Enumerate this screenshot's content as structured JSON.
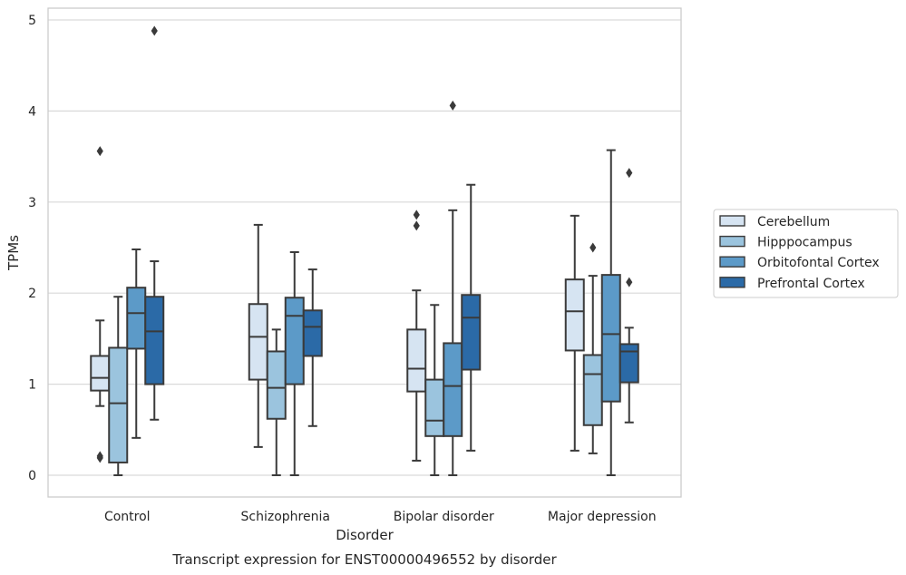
{
  "chart_data": {
    "type": "box",
    "title": "",
    "caption": "Transcript expression for ENST00000496552 by disorder",
    "xlabel": "Disorder",
    "ylabel": "TPMs",
    "ylim": [
      -0.22,
      5.12
    ],
    "yticks": [
      0,
      1,
      2,
      3,
      4,
      5
    ],
    "grid": true,
    "legend_position": "right",
    "categories": [
      "Control",
      "Schizophrenia",
      "Bipolar disorder",
      "Major depression"
    ],
    "series": [
      {
        "name": "Cerebellum",
        "color": "#d6e4f2",
        "boxes": [
          {
            "whislo": 0.76,
            "q1": 0.93,
            "med": 1.07,
            "q3": 1.31,
            "whishi": 1.7,
            "fliers": [
              0.21,
              0.19,
              3.56
            ]
          },
          {
            "whislo": 0.31,
            "q1": 1.05,
            "med": 1.52,
            "q3": 1.88,
            "whishi": 2.75,
            "fliers": []
          },
          {
            "whislo": 0.16,
            "q1": 0.92,
            "med": 1.17,
            "q3": 1.6,
            "whishi": 2.03,
            "fliers": [
              2.74,
              2.86
            ]
          },
          {
            "whislo": 0.27,
            "q1": 1.37,
            "med": 1.8,
            "q3": 2.15,
            "whishi": 2.85,
            "fliers": []
          }
        ]
      },
      {
        "name": "Hipppocampus",
        "color": "#9bc4de",
        "boxes": [
          {
            "whislo": 0.0,
            "q1": 0.14,
            "med": 0.79,
            "q3": 1.4,
            "whishi": 1.96,
            "fliers": []
          },
          {
            "whislo": 0.0,
            "q1": 0.62,
            "med": 0.96,
            "q3": 1.36,
            "whishi": 1.6,
            "fliers": []
          },
          {
            "whislo": 0.0,
            "q1": 0.43,
            "med": 0.6,
            "q3": 1.05,
            "whishi": 1.87,
            "fliers": []
          },
          {
            "whislo": 0.24,
            "q1": 0.55,
            "med": 1.11,
            "q3": 1.32,
            "whishi": 2.19,
            "fliers": [
              2.5
            ]
          }
        ]
      },
      {
        "name": "Orbitofontal Cortex",
        "color": "#5c9ac8",
        "boxes": [
          {
            "whislo": 0.41,
            "q1": 1.39,
            "med": 1.78,
            "q3": 2.06,
            "whishi": 2.48,
            "fliers": []
          },
          {
            "whislo": 0.0,
            "q1": 1.0,
            "med": 1.75,
            "q3": 1.95,
            "whishi": 2.45,
            "fliers": []
          },
          {
            "whislo": 0.0,
            "q1": 0.43,
            "med": 0.98,
            "q3": 1.45,
            "whishi": 2.91,
            "fliers": [
              4.06
            ]
          },
          {
            "whislo": 0.0,
            "q1": 0.81,
            "med": 1.55,
            "q3": 2.2,
            "whishi": 3.57,
            "fliers": []
          }
        ]
      },
      {
        "name": "Prefrontal Cortex",
        "color": "#2b6aa7",
        "boxes": [
          {
            "whislo": 0.61,
            "q1": 1.0,
            "med": 1.58,
            "q3": 1.96,
            "whishi": 2.35,
            "fliers": [
              4.88
            ]
          },
          {
            "whislo": 0.54,
            "q1": 1.31,
            "med": 1.63,
            "q3": 1.81,
            "whishi": 2.26,
            "fliers": []
          },
          {
            "whislo": 0.27,
            "q1": 1.16,
            "med": 1.73,
            "q3": 1.98,
            "whishi": 3.19,
            "fliers": []
          },
          {
            "whislo": 0.58,
            "q1": 1.02,
            "med": 1.36,
            "q3": 1.44,
            "whishi": 1.62,
            "fliers": [
              2.12,
              3.32
            ]
          }
        ]
      }
    ]
  }
}
